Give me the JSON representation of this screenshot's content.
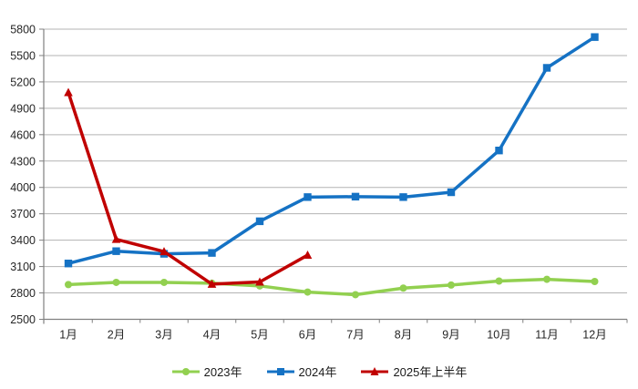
{
  "chart_data": {
    "type": "line",
    "title": "",
    "xlabel": "",
    "ylabel": "",
    "categories": [
      "1月",
      "2月",
      "3月",
      "4月",
      "5月",
      "6月",
      "7月",
      "8月",
      "9月",
      "10月",
      "11月",
      "12月"
    ],
    "series": [
      {
        "name": "2023年",
        "color": "#92D050",
        "marker": "circle",
        "values": [
          2895,
          2920,
          2920,
          2910,
          2880,
          2810,
          2780,
          2855,
          2890,
          2935,
          2955,
          2930
        ]
      },
      {
        "name": "2024年",
        "color": "#1572C4",
        "marker": "square",
        "values": [
          3135,
          3275,
          3245,
          3255,
          3615,
          3890,
          3895,
          3890,
          3945,
          4420,
          5360,
          5710
        ]
      },
      {
        "name": "2025年上半年",
        "color": "#C00000",
        "marker": "triangle",
        "values": [
          5080,
          3410,
          3270,
          2900,
          2925,
          3230
        ]
      }
    ],
    "ylim": [
      2500,
      5800
    ],
    "yticks": [
      2500,
      2800,
      3100,
      3400,
      3700,
      4000,
      4300,
      4600,
      4900,
      5200,
      5500,
      5800
    ],
    "grid": "horizontal",
    "legend_position": "bottom"
  },
  "colors": {
    "background": "#FFFFFF",
    "gridline": "#B3B3B3",
    "axis": "#808080",
    "tick_label": "#262626",
    "series_2023": "#92D050",
    "series_2024": "#1572C4",
    "series_2025": "#C00000"
  }
}
